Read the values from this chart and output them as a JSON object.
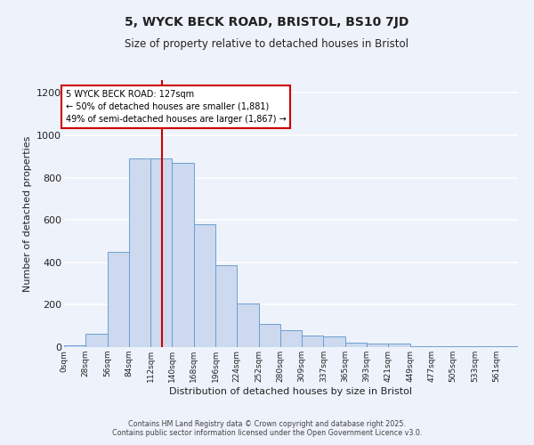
{
  "title1": "5, WYCK BECK ROAD, BRISTOL, BS10 7JD",
  "title2": "Size of property relative to detached houses in Bristol",
  "xlabel": "Distribution of detached houses by size in Bristol",
  "ylabel": "Number of detached properties",
  "categories": [
    "0sqm",
    "28sqm",
    "56sqm",
    "84sqm",
    "112sqm",
    "140sqm",
    "168sqm",
    "196sqm",
    "224sqm",
    "252sqm",
    "280sqm",
    "309sqm",
    "337sqm",
    "365sqm",
    "393sqm",
    "421sqm",
    "449sqm",
    "477sqm",
    "505sqm",
    "533sqm",
    "561sqm"
  ],
  "values": [
    10,
    65,
    450,
    890,
    890,
    870,
    580,
    385,
    205,
    110,
    80,
    55,
    50,
    20,
    15,
    15,
    5,
    5,
    5,
    5,
    5
  ],
  "bar_color": "#cdd9ee",
  "bar_edge_color": "#6b9fd4",
  "vline_x": 127,
  "vline_color": "#cc0000",
  "annotation_text": "5 WYCK BECK ROAD: 127sqm\n← 50% of detached houses are smaller (1,881)\n49% of semi-detached houses are larger (1,867) →",
  "annotation_box_facecolor": "#ffffff",
  "annotation_box_edge": "#cc0000",
  "ylim": [
    0,
    1260
  ],
  "yticks": [
    0,
    200,
    400,
    600,
    800,
    1000,
    1200
  ],
  "bin_width": 28,
  "footer1": "Contains HM Land Registry data © Crown copyright and database right 2025.",
  "footer2": "Contains public sector information licensed under the Open Government Licence v3.0.",
  "bg_color": "#eef2fa",
  "grid_color": "#ffffff",
  "font_color": "#222222"
}
